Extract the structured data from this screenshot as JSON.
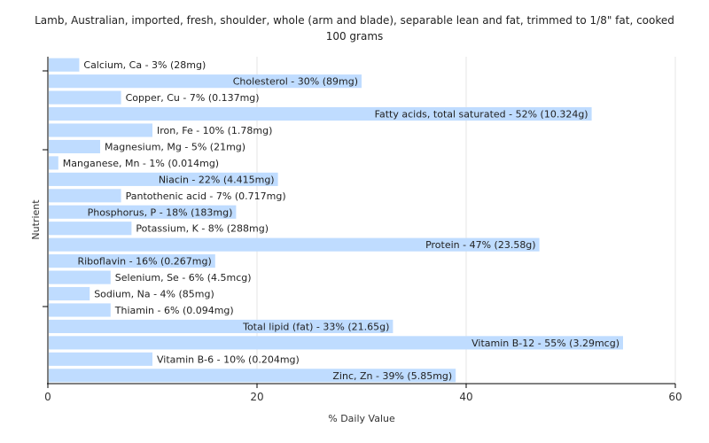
{
  "chart_data": {
    "type": "bar",
    "orientation": "horizontal",
    "title_lines": [
      "Lamb, Australian, imported, fresh, shoulder, whole (arm and blade), separable lean and fat, trimmed to 1/8\" fat, cooked",
      "100 grams"
    ],
    "xlabel": "% Daily Value",
    "ylabel": "Nutrient",
    "xlim": [
      0,
      60
    ],
    "xticks": [
      0,
      20,
      40,
      60
    ],
    "grid": true,
    "bar_color": "#bfdcff",
    "categories": [
      "Calcium, Ca",
      "Cholesterol",
      "Copper, Cu",
      "Fatty acids, total saturated",
      "Iron, Fe",
      "Magnesium, Mg",
      "Manganese, Mn",
      "Niacin",
      "Pantothenic acid",
      "Phosphorus, P",
      "Potassium, K",
      "Protein",
      "Riboflavin",
      "Selenium, Se",
      "Sodium, Na",
      "Thiamin",
      "Total lipid (fat)",
      "Vitamin B-12",
      "Vitamin B-6",
      "Zinc, Zn"
    ],
    "values": [
      3,
      30,
      7,
      52,
      10,
      5,
      1,
      22,
      7,
      18,
      8,
      47,
      16,
      6,
      4,
      6,
      33,
      55,
      10,
      39
    ],
    "labels": [
      "Calcium, Ca - 3% (28mg)",
      "Cholesterol - 30% (89mg)",
      "Copper, Cu - 7% (0.137mg)",
      "Fatty acids, total saturated - 52% (10.324g)",
      "Iron, Fe - 10% (1.78mg)",
      "Magnesium, Mg - 5% (21mg)",
      "Manganese, Mn - 1% (0.014mg)",
      "Niacin - 22% (4.415mg)",
      "Pantothenic acid - 7% (0.717mg)",
      "Phosphorus, P - 18% (183mg)",
      "Potassium, K - 8% (288mg)",
      "Protein - 47% (23.58g)",
      "Riboflavin - 16% (0.267mg)",
      "Selenium, Se - 6% (4.5mcg)",
      "Sodium, Na - 4% (85mg)",
      "Thiamin - 6% (0.094mg)",
      "Total lipid (fat) - 33% (21.65g)",
      "Vitamin B-12 - 55% (3.29mcg)",
      "Vitamin B-6 - 10% (0.204mg)",
      "Zinc, Zn - 39% (5.85mg)"
    ]
  }
}
